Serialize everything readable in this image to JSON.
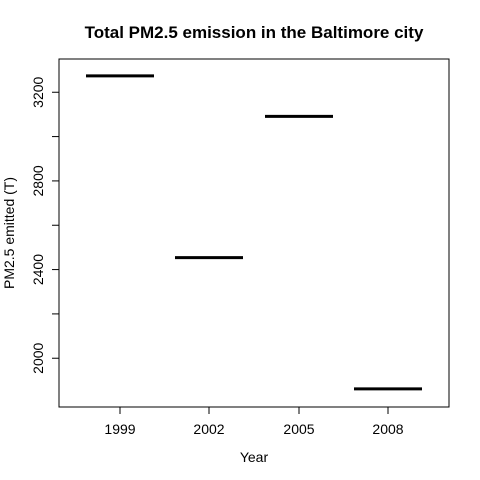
{
  "chart_data": {
    "type": "line",
    "title": "Total PM2.5 emission in the Baltimore city",
    "xlabel": "Year",
    "ylabel": "PM2.5 emitted (T)",
    "categories": [
      "1999",
      "2002",
      "2005",
      "2008"
    ],
    "values": [
      3274,
      2454,
      3091,
      1862
    ],
    "yticks": [
      2000,
      2400,
      2800,
      3200
    ],
    "ylim": [
      1780,
      3350
    ],
    "grid": false,
    "legend": "none"
  }
}
